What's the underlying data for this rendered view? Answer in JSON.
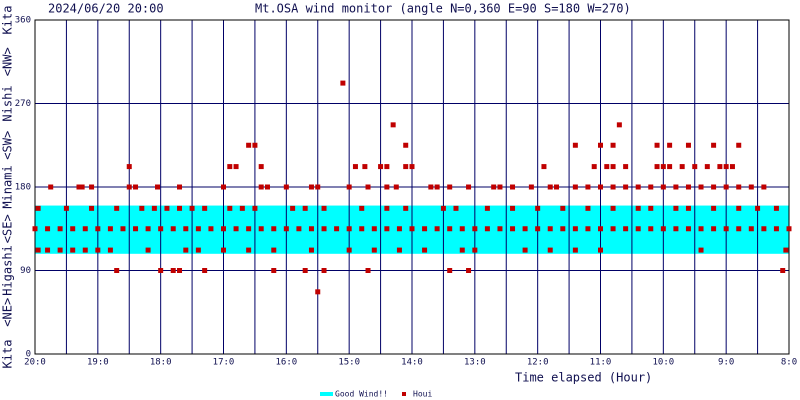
{
  "chart_data": {
    "type": "scatter",
    "timestamp": "2024/06/20 20:00",
    "title": "Mt.OSA wind monitor (angle N=0,360 E=90 S=180 W=270)",
    "x_label": "Time elapsed (Hour)",
    "xlim": [
      0,
      12
    ],
    "xticks": [
      {
        "value": 0,
        "label": "20:0"
      },
      {
        "value": 1,
        "label": "19:0"
      },
      {
        "value": 2,
        "label": "18:0"
      },
      {
        "value": 3,
        "label": "17:0"
      },
      {
        "value": 4,
        "label": "16:0"
      },
      {
        "value": 5,
        "label": "15:0"
      },
      {
        "value": 6,
        "label": "14:0"
      },
      {
        "value": 7,
        "label": "13:0"
      },
      {
        "value": 8,
        "label": "12:0"
      },
      {
        "value": 9,
        "label": "11:0"
      },
      {
        "value": 10,
        "label": "10:0"
      },
      {
        "value": 11,
        "label": "9:0"
      },
      {
        "value": 12,
        "label": "8:0"
      }
    ],
    "xticks_minor": [
      0.5,
      1.5,
      2.5,
      3.5,
      4.5,
      5.5,
      6.5,
      7.5,
      8.5,
      9.5,
      10.5,
      11.5
    ],
    "ylim": [
      0,
      360
    ],
    "yticks": [
      0,
      90,
      180,
      270,
      360
    ],
    "direction_labels": [
      {
        "value": 0,
        "label": "Kita"
      },
      {
        "value": 45,
        "label": "<NE>"
      },
      {
        "value": 90,
        "label": "Higashi"
      },
      {
        "value": 135,
        "label": "<SE>"
      },
      {
        "value": 180,
        "label": "Minami"
      },
      {
        "value": 225,
        "label": "<SW>"
      },
      {
        "value": 270,
        "label": "Nishi"
      },
      {
        "value": 315,
        "label": "<NW>"
      },
      {
        "value": 360,
        "label": "Kita"
      }
    ],
    "grid": true,
    "good_wind": {
      "name": "Good Wind!!",
      "range": [
        108,
        160
      ],
      "color": "#00ffff"
    },
    "series": [
      {
        "name": "Houi",
        "color": "#c00000",
        "x": [
          0,
          0.2,
          0.4,
          0.6,
          0.8,
          1,
          1.2,
          1.4,
          1.6,
          1.8,
          2,
          2.2,
          2.4,
          2.6,
          2.8,
          3,
          3.2,
          3.4,
          3.6,
          3.8,
          4,
          4.2,
          4.4,
          4.6,
          4.8,
          5,
          5.2,
          5.4,
          5.6,
          5.8,
          6,
          6.2,
          6.4,
          6.6,
          6.8,
          7,
          7.2,
          7.4,
          7.6,
          7.8,
          8,
          8.2,
          8.4,
          8.6,
          8.8,
          9,
          9.2,
          9.4,
          9.6,
          9.8,
          10,
          10.2,
          10.4,
          10.6,
          10.8,
          11,
          11.2,
          11.4,
          11.6,
          11.8,
          12,
          0.05,
          0.2,
          0.4,
          0.6,
          0.8,
          1.0,
          1.2,
          1.8,
          2.4,
          2.6,
          3.0,
          3.4,
          3.8,
          4.4,
          5.0,
          5.4,
          5.8,
          6.2,
          6.8,
          7.0,
          7.8,
          8.2,
          8.6,
          9.0,
          10.6,
          11.95,
          0.05,
          0.5,
          0.9,
          1.3,
          1.7,
          1.9,
          2.1,
          2.3,
          2.5,
          2.7,
          3.1,
          3.3,
          3.5,
          4.1,
          4.3,
          4.6,
          5.2,
          5.6,
          5.9,
          6.5,
          6.7,
          7.2,
          7.6,
          8.0,
          8.4,
          8.8,
          9.2,
          9.6,
          9.8,
          10.2,
          10.4,
          10.8,
          11.2,
          11.5,
          11.8,
          0.25,
          0.7,
          0.75,
          0.9,
          1.5,
          1.6,
          1.95,
          2.3,
          3.0,
          3.6,
          3.7,
          4.0,
          4.4,
          4.5,
          5.0,
          5.3,
          5.6,
          5.75,
          6.3,
          6.4,
          6.6,
          6.9,
          7.3,
          7.4,
          7.6,
          7.9,
          8.2,
          8.3,
          8.6,
          8.8,
          9.0,
          9.2,
          9.4,
          9.6,
          9.8,
          10.0,
          10.2,
          10.4,
          10.6,
          10.8,
          11.0,
          11.2,
          11.4,
          11.6,
          1.5,
          3.1,
          3.2,
          3.6,
          5.1,
          5.25,
          5.5,
          5.6,
          5.9,
          6.0,
          8.1,
          8.9,
          9.1,
          9.2,
          9.4,
          9.9,
          10.0,
          10.1,
          10.3,
          10.5,
          10.7,
          10.9,
          11.0,
          11.1,
          3.4,
          3.5,
          5.9,
          8.6,
          9.0,
          9.2,
          9.9,
          10.1,
          10.4,
          10.8,
          11.2,
          5.7,
          9.3,
          4.9,
          1.3,
          2.0,
          2.2,
          2.3,
          2.7,
          3.8,
          4.3,
          4.6,
          5.3,
          6.6,
          6.9,
          11.9,
          4.5
        ],
        "values": [
          135,
          135,
          135,
          135,
          135,
          135,
          135,
          135,
          135,
          135,
          135,
          135,
          135,
          135,
          135,
          135,
          135,
          135,
          135,
          135,
          135,
          135,
          135,
          135,
          135,
          135,
          135,
          135,
          135,
          135,
          135,
          135,
          135,
          135,
          135,
          135,
          135,
          135,
          135,
          135,
          135,
          135,
          135,
          135,
          135,
          135,
          135,
          135,
          135,
          135,
          135,
          135,
          135,
          135,
          135,
          135,
          135,
          135,
          135,
          135,
          135,
          112,
          112,
          112,
          112,
          112,
          112,
          112,
          112,
          112,
          112,
          112,
          112,
          112,
          112,
          112,
          112,
          112,
          112,
          112,
          112,
          112,
          112,
          112,
          112,
          112,
          112,
          157,
          157,
          157,
          157,
          157,
          157,
          157,
          157,
          157,
          157,
          157,
          157,
          157,
          157,
          157,
          157,
          157,
          157,
          157,
          157,
          157,
          157,
          157,
          157,
          157,
          157,
          157,
          157,
          157,
          157,
          157,
          157,
          157,
          157,
          157,
          180,
          180,
          180,
          180,
          180,
          180,
          180,
          180,
          180,
          180,
          180,
          180,
          180,
          180,
          180,
          180,
          180,
          180,
          180,
          180,
          180,
          180,
          180,
          180,
          180,
          180,
          180,
          180,
          180,
          180,
          180,
          180,
          180,
          180,
          180,
          180,
          180,
          180,
          180,
          180,
          180,
          180,
          180,
          180,
          202,
          202,
          202,
          202,
          202,
          202,
          202,
          202,
          202,
          202,
          202,
          202,
          202,
          202,
          202,
          202,
          202,
          202,
          202,
          202,
          202,
          202,
          202,
          202,
          225,
          225,
          225,
          225,
          225,
          225,
          225,
          225,
          225,
          225,
          225,
          247,
          247,
          292,
          90,
          90,
          90,
          90,
          90,
          90,
          90,
          90,
          90,
          90,
          90,
          90,
          67
        ]
      }
    ]
  }
}
